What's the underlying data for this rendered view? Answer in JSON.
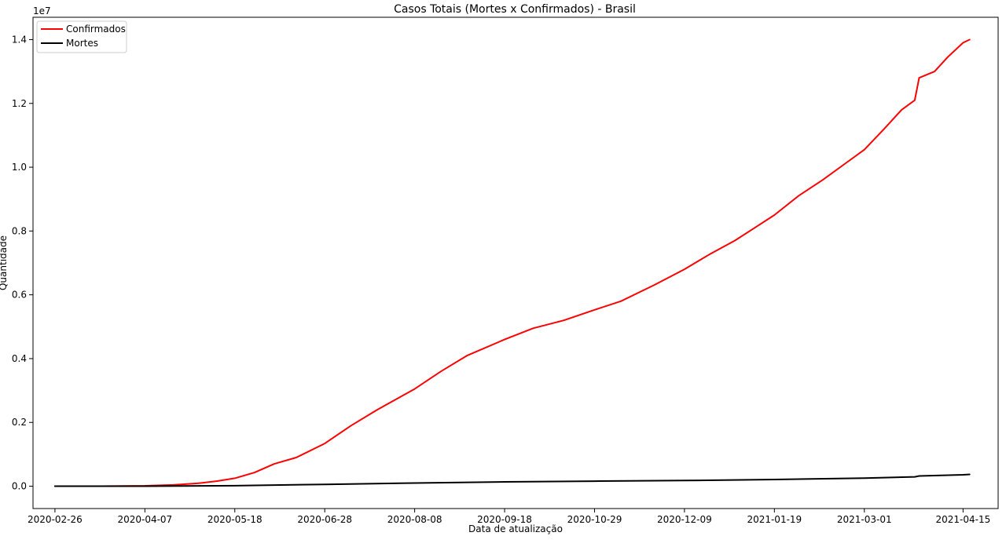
{
  "chart_data": {
    "type": "line",
    "title": "Casos Totais (Mortes x Confirmados) - Brasil",
    "xlabel": "Data de atualização",
    "ylabel": "Quantidade",
    "y_multiplier_label": "1e7",
    "y_scale": 10000000,
    "xlim": [
      "2020-02-16",
      "2021-05-01"
    ],
    "ylim": [
      -0.07,
      1.47
    ],
    "x_ticks": [
      "2020-02-26",
      "2020-04-07",
      "2020-05-18",
      "2020-06-28",
      "2020-08-08",
      "2020-09-18",
      "2020-10-29",
      "2020-12-09",
      "2021-01-19",
      "2021-03-01",
      "2021-04-15"
    ],
    "y_ticks": [
      "0.0",
      "0.2",
      "0.4",
      "0.6",
      "0.8",
      "1.0",
      "1.2",
      "1.4"
    ],
    "grid": false,
    "legend_position": "top-left",
    "series": [
      {
        "name": "Confirmados",
        "color": "#ff0000",
        "x": [
          "2020-02-26",
          "2020-03-15",
          "2020-04-07",
          "2020-04-20",
          "2020-05-01",
          "2020-05-10",
          "2020-05-18",
          "2020-05-27",
          "2020-06-05",
          "2020-06-15",
          "2020-06-28",
          "2020-07-10",
          "2020-07-22",
          "2020-08-08",
          "2020-08-20",
          "2020-09-01",
          "2020-09-18",
          "2020-10-01",
          "2020-10-15",
          "2020-10-29",
          "2020-11-10",
          "2020-11-25",
          "2020-12-09",
          "2020-12-20",
          "2021-01-01",
          "2021-01-10",
          "2021-01-19",
          "2021-01-30",
          "2021-02-10",
          "2021-02-20",
          "2021-03-01",
          "2021-03-10",
          "2021-03-18",
          "2021-03-24",
          "2021-03-26",
          "2021-04-02",
          "2021-04-08",
          "2021-04-15",
          "2021-04-18"
        ],
        "values": [
          0,
          0.0001,
          0.0014,
          0.004,
          0.009,
          0.016,
          0.025,
          0.043,
          0.07,
          0.09,
          0.134,
          0.19,
          0.24,
          0.305,
          0.36,
          0.41,
          0.46,
          0.495,
          0.52,
          0.553,
          0.58,
          0.63,
          0.68,
          0.725,
          0.77,
          0.81,
          0.85,
          0.91,
          0.96,
          1.01,
          1.055,
          1.12,
          1.18,
          1.21,
          1.28,
          1.3,
          1.345,
          1.39,
          1.4
        ]
      },
      {
        "name": "Mortes",
        "color": "#000000",
        "x": [
          "2020-02-26",
          "2020-04-07",
          "2020-05-18",
          "2020-06-28",
          "2020-08-08",
          "2020-09-18",
          "2020-10-29",
          "2020-12-09",
          "2021-01-19",
          "2021-03-01",
          "2021-03-24",
          "2021-03-26",
          "2021-04-15",
          "2021-04-18"
        ],
        "values": [
          0,
          7e-05,
          0.0017,
          0.0058,
          0.0099,
          0.0136,
          0.0158,
          0.0179,
          0.0211,
          0.0255,
          0.0295,
          0.032,
          0.0358,
          0.037
        ]
      }
    ]
  }
}
